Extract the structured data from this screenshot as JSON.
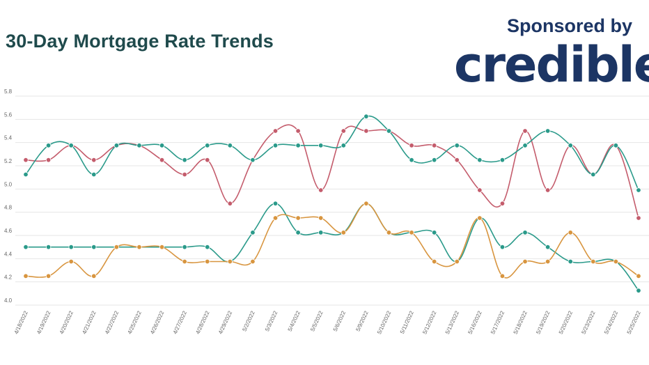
{
  "chart_data": {
    "type": "line",
    "title": "30-Day Mortgage Rate Trends",
    "sponsor_text": "Sponsored by",
    "brand": "credible",
    "ylim": [
      4.0,
      5.8
    ],
    "yticks": [
      "4.0",
      "4.2",
      "4.4",
      "4.6",
      "4.8",
      "5.0",
      "5.2",
      "5.4",
      "5.6",
      "5.8"
    ],
    "grid": true,
    "categories": [
      "4/18/2022",
      "4/19/2022",
      "4/20/2022",
      "4/21/2022",
      "4/22/2022",
      "4/25/2022",
      "4/26/2022",
      "4/27/2022",
      "4/28/2022",
      "4/29/2022",
      "5/2/2022",
      "5/3/2022",
      "5/4/2022",
      "5/5/2022",
      "5/6/2022",
      "5/9/2022",
      "5/10/2022",
      "5/11/2022",
      "5/12/2022",
      "5/13/2022",
      "5/16/2022",
      "5/17/2022",
      "5/18/2022",
      "5/19/2022",
      "5/20/2022",
      "5/23/2022",
      "5/24/2022",
      "5/25/2022"
    ],
    "series": [
      {
        "color": "#c45c6c",
        "values": [
          5.25,
          5.25,
          5.375,
          5.25,
          5.375,
          5.375,
          5.25,
          5.125,
          5.25,
          4.875,
          5.25,
          5.5,
          5.5,
          4.99,
          5.5,
          5.5,
          5.5,
          5.375,
          5.375,
          5.25,
          4.99,
          4.875,
          5.5,
          4.99,
          5.375,
          5.125,
          5.375,
          4.75
        ]
      },
      {
        "color": "#2a9a8a",
        "values": [
          5.125,
          5.375,
          5.375,
          5.125,
          5.375,
          5.375,
          5.375,
          5.25,
          5.375,
          5.375,
          5.25,
          5.375,
          5.375,
          5.375,
          5.375,
          5.625,
          5.5,
          5.25,
          5.25,
          5.375,
          5.25,
          5.25,
          5.375,
          5.5,
          5.375,
          5.125,
          5.375,
          4.99
        ]
      },
      {
        "color": "#2a9a8a",
        "values": [
          4.5,
          4.5,
          4.5,
          4.5,
          4.5,
          4.5,
          4.5,
          4.5,
          4.5,
          4.375,
          4.625,
          4.875,
          4.625,
          4.625,
          4.625,
          4.875,
          4.625,
          4.625,
          4.625,
          4.375,
          4.75,
          4.5,
          4.625,
          4.5,
          4.375,
          4.375,
          4.375,
          4.125
        ]
      },
      {
        "color": "#d8953f",
        "values": [
          4.25,
          4.25,
          4.375,
          4.25,
          4.5,
          4.5,
          4.5,
          4.375,
          4.375,
          4.375,
          4.375,
          4.75,
          4.75,
          4.75,
          4.625,
          4.875,
          4.625,
          4.625,
          4.375,
          4.375,
          4.75,
          4.25,
          4.375,
          4.375,
          4.625,
          4.375,
          4.375,
          4.25
        ]
      }
    ]
  }
}
